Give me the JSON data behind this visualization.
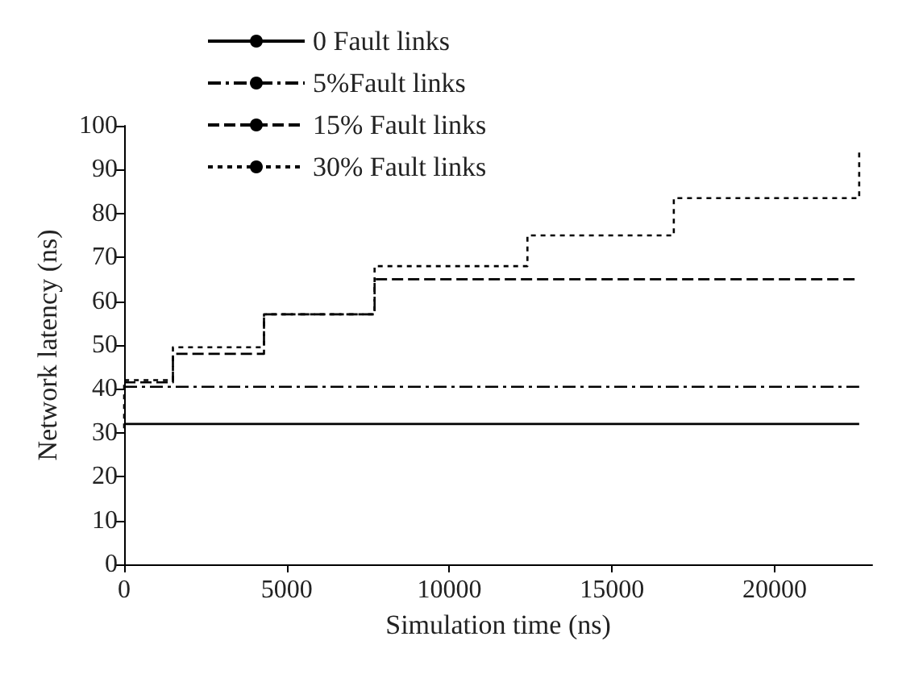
{
  "chart_data": {
    "type": "step",
    "xlabel": "Simulation time (ns)",
    "ylabel": "Network latency (ns)",
    "xlim": [
      0,
      23000
    ],
    "xticks": [
      0,
      5000,
      10000,
      15000,
      20000
    ],
    "ylim": [
      0,
      100
    ],
    "yticks": [
      0,
      10,
      20,
      30,
      40,
      50,
      60,
      70,
      80,
      90,
      100
    ],
    "grid": false,
    "legend": "top left",
    "series": [
      {
        "name": "0 Fault links",
        "color": "#000000",
        "line_style": "solid",
        "x": [
          0,
          22600
        ],
        "values": [
          32,
          32
        ]
      },
      {
        "name": "5%Fault links",
        "color": "#000000",
        "line_style": "dashdot",
        "x": [
          0,
          22600
        ],
        "values": [
          40.5,
          40.5
        ]
      },
      {
        "name": "15% Fault links",
        "color": "#000000",
        "line_style": "dashed",
        "x": [
          0,
          1500,
          4300,
          7700,
          22600
        ],
        "values": [
          41.5,
          48,
          57,
          65,
          65
        ]
      },
      {
        "name": "30% Fault links",
        "color": "#000000",
        "line_style": "dotted",
        "x": [
          0,
          0,
          1500,
          4300,
          7700,
          12400,
          16900,
          22600
        ],
        "values": [
          31,
          42,
          49.5,
          57,
          68,
          75,
          83.5,
          94
        ]
      }
    ]
  }
}
